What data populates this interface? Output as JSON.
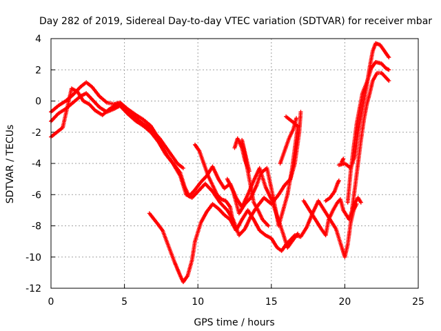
{
  "chart_data": {
    "type": "scatter",
    "title": "Day 282 of 2019, Sidereal Day-to-day VTEC variation (SDTVAR) for receiver mbar",
    "xlabel": "GPS time / hours",
    "ylabel": "SDTVAR / TECUs",
    "xlim": [
      0,
      25
    ],
    "ylim": [
      -12,
      4
    ],
    "x_ticks": [
      0,
      5,
      10,
      15,
      20,
      25
    ],
    "y_ticks": [
      -12,
      -10,
      -8,
      -6,
      -4,
      -2,
      0,
      2,
      4
    ],
    "grid": true,
    "marker": "+",
    "color": "#ff0000",
    "series": [
      {
        "points": [
          [
            0.0,
            -0.7
          ],
          [
            0.5,
            -0.3
          ],
          [
            1.0,
            0.0
          ],
          [
            1.5,
            0.4
          ],
          [
            2.0,
            0.9
          ],
          [
            2.4,
            1.2
          ],
          [
            2.8,
            0.9
          ],
          [
            3.3,
            0.3
          ],
          [
            3.8,
            -0.1
          ],
          [
            4.3,
            -0.2
          ],
          [
            4.7,
            -0.1
          ],
          [
            5.2,
            -0.5
          ],
          [
            5.8,
            -0.9
          ],
          [
            6.3,
            -1.2
          ],
          [
            6.8,
            -1.6
          ],
          [
            7.2,
            -2.2
          ],
          [
            7.6,
            -3.0
          ],
          [
            8.0,
            -3.6
          ],
          [
            8.4,
            -4.1
          ],
          [
            8.8,
            -4.6
          ],
          [
            9.1,
            -5.5
          ],
          [
            9.4,
            -6.1
          ],
          [
            9.8,
            -5.7
          ],
          [
            10.2,
            -5.2
          ],
          [
            10.6,
            -4.8
          ],
          [
            11.0,
            -4.2
          ],
          [
            11.4,
            -5.0
          ],
          [
            11.8,
            -5.6
          ],
          [
            12.2,
            -5.3
          ],
          [
            12.6,
            -6.2
          ],
          [
            13.0,
            -6.8
          ],
          [
            13.4,
            -6.0
          ],
          [
            13.8,
            -5.1
          ],
          [
            14.2,
            -4.3
          ],
          [
            14.6,
            -5.5
          ],
          [
            15.0,
            -6.3
          ],
          [
            15.4,
            -7.4
          ],
          [
            15.8,
            -8.5
          ],
          [
            16.1,
            -9.4
          ],
          [
            16.4,
            -9.0
          ],
          [
            16.8,
            -8.5
          ]
        ]
      },
      {
        "points": [
          [
            0.0,
            -1.3
          ],
          [
            0.5,
            -0.8
          ],
          [
            1.0,
            -0.5
          ],
          [
            1.5,
            -0.1
          ],
          [
            2.0,
            0.3
          ],
          [
            2.4,
            0.5
          ],
          [
            2.8,
            0.1
          ],
          [
            3.3,
            -0.4
          ],
          [
            3.8,
            -0.7
          ],
          [
            4.3,
            -0.5
          ],
          [
            4.7,
            -0.3
          ],
          [
            5.2,
            -0.8
          ],
          [
            5.8,
            -1.3
          ],
          [
            6.3,
            -1.6
          ],
          [
            6.8,
            -2.0
          ],
          [
            7.3,
            -2.6
          ],
          [
            7.8,
            -3.4
          ],
          [
            8.3,
            -4.0
          ],
          [
            8.8,
            -4.8
          ],
          [
            9.2,
            -6.0
          ],
          [
            9.6,
            -6.2
          ],
          [
            10.0,
            -5.8
          ],
          [
            10.5,
            -5.3
          ],
          [
            11.0,
            -5.8
          ],
          [
            11.5,
            -6.5
          ],
          [
            12.0,
            -7.0
          ],
          [
            12.4,
            -7.6
          ],
          [
            12.8,
            -8.6
          ],
          [
            13.2,
            -8.2
          ],
          [
            13.6,
            -7.4
          ],
          [
            14.0,
            -6.8
          ],
          [
            14.5,
            -6.2
          ],
          [
            15.0,
            -6.6
          ],
          [
            15.5,
            -6.0
          ],
          [
            15.9,
            -5.4
          ],
          [
            16.3,
            -5.0
          ],
          [
            16.6,
            -4.0
          ],
          [
            16.9,
            -2.0
          ],
          [
            17.0,
            -0.7
          ]
        ]
      },
      {
        "points": [
          [
            0.0,
            -2.3
          ],
          [
            0.4,
            -2.0
          ],
          [
            0.8,
            -1.7
          ],
          [
            1.4,
            0.8
          ],
          [
            1.8,
            0.6
          ],
          [
            2.2,
            0.0
          ],
          [
            2.6,
            -0.2
          ],
          [
            3.0,
            -0.6
          ],
          [
            3.5,
            -0.9
          ],
          [
            4.0,
            -0.5
          ],
          [
            4.5,
            -0.2
          ],
          [
            5.0,
            -0.4
          ],
          [
            5.6,
            -1.0
          ],
          [
            6.2,
            -1.4
          ],
          [
            6.8,
            -1.8
          ],
          [
            7.4,
            -2.4
          ],
          [
            8.0,
            -3.2
          ],
          [
            8.6,
            -4.0
          ],
          [
            9.0,
            -4.3
          ]
        ]
      },
      {
        "points": [
          [
            6.7,
            -7.2
          ],
          [
            7.2,
            -7.8
          ],
          [
            7.6,
            -8.3
          ],
          [
            8.0,
            -9.3
          ],
          [
            8.4,
            -10.3
          ],
          [
            8.8,
            -11.2
          ],
          [
            9.0,
            -11.6
          ],
          [
            9.3,
            -11.2
          ],
          [
            9.6,
            -10.2
          ],
          [
            9.8,
            -9.0
          ],
          [
            10.2,
            -7.8
          ],
          [
            10.6,
            -7.1
          ],
          [
            11.0,
            -6.6
          ],
          [
            11.4,
            -6.9
          ],
          [
            11.8,
            -7.3
          ],
          [
            12.2,
            -7.6
          ],
          [
            12.6,
            -8.3
          ],
          [
            13.0,
            -7.6
          ],
          [
            13.4,
            -7.0
          ],
          [
            13.8,
            -7.6
          ],
          [
            14.2,
            -8.3
          ],
          [
            14.6,
            -8.6
          ],
          [
            15.0,
            -8.8
          ],
          [
            15.4,
            -9.4
          ],
          [
            15.7,
            -9.6
          ],
          [
            16.0,
            -9.2
          ],
          [
            16.3,
            -8.9
          ],
          [
            16.6,
            -8.6
          ],
          [
            17.0,
            -8.7
          ],
          [
            17.4,
            -8.1
          ],
          [
            17.8,
            -7.2
          ],
          [
            18.2,
            -6.4
          ],
          [
            18.6,
            -7.0
          ],
          [
            19.0,
            -7.6
          ],
          [
            19.4,
            -8.2
          ],
          [
            19.8,
            -9.4
          ],
          [
            20.0,
            -10.0
          ],
          [
            20.2,
            -9.2
          ],
          [
            20.4,
            -7.8
          ],
          [
            20.6,
            -7.0
          ],
          [
            20.8,
            -6.6
          ]
        ]
      },
      {
        "points": [
          [
            12.0,
            -5.0
          ],
          [
            12.4,
            -5.8
          ],
          [
            12.8,
            -7.2
          ],
          [
            13.2,
            -6.6
          ],
          [
            13.6,
            -6.2
          ],
          [
            14.0,
            -5.4
          ],
          [
            14.3,
            -4.6
          ],
          [
            14.7,
            -4.3
          ],
          [
            15.0,
            -5.6
          ],
          [
            15.3,
            -7.0
          ],
          [
            15.5,
            -8.0
          ],
          [
            15.8,
            -7.0
          ],
          [
            16.1,
            -6.0
          ],
          [
            16.4,
            -4.4
          ],
          [
            16.6,
            -3.0
          ],
          [
            16.8,
            -1.6
          ],
          [
            16.0,
            -1.0
          ]
        ]
      },
      {
        "points": [
          [
            17.2,
            -6.4
          ],
          [
            17.6,
            -7.0
          ],
          [
            18.0,
            -7.6
          ],
          [
            18.4,
            -8.2
          ],
          [
            18.7,
            -8.6
          ],
          [
            18.9,
            -7.6
          ],
          [
            19.2,
            -7.0
          ],
          [
            19.5,
            -6.5
          ],
          [
            19.7,
            -6.3
          ],
          [
            19.9,
            -7.0
          ],
          [
            20.1,
            -7.3
          ],
          [
            20.3,
            -7.6
          ],
          [
            20.5,
            -7.0
          ],
          [
            20.7,
            -6.5
          ],
          [
            20.9,
            -6.2
          ],
          [
            21.1,
            -6.5
          ]
        ]
      },
      {
        "points": [
          [
            19.6,
            -4.1
          ],
          [
            20.0,
            -4.0
          ],
          [
            20.4,
            -4.3
          ],
          [
            20.7,
            -3.5
          ],
          [
            20.9,
            -2.0
          ],
          [
            21.1,
            -1.0
          ],
          [
            21.3,
            0.0
          ],
          [
            21.5,
            1.0
          ],
          [
            21.7,
            2.2
          ],
          [
            21.9,
            3.2
          ],
          [
            22.1,
            3.7
          ],
          [
            22.4,
            3.6
          ],
          [
            22.7,
            3.2
          ],
          [
            23.0,
            2.8
          ]
        ]
      },
      {
        "points": [
          [
            20.2,
            -6.5
          ],
          [
            20.4,
            -4.5
          ],
          [
            20.6,
            -3.0
          ],
          [
            20.8,
            -1.5
          ],
          [
            21.0,
            -0.5
          ],
          [
            21.2,
            0.5
          ],
          [
            21.5,
            1.2
          ],
          [
            21.8,
            2.1
          ],
          [
            22.1,
            2.5
          ],
          [
            22.5,
            2.4
          ],
          [
            22.8,
            2.1
          ],
          [
            23.0,
            2.0
          ]
        ]
      },
      {
        "points": [
          [
            20.5,
            -6.9
          ],
          [
            20.7,
            -5.5
          ],
          [
            20.9,
            -4.0
          ],
          [
            21.1,
            -2.5
          ],
          [
            21.3,
            -1.2
          ],
          [
            21.5,
            -0.2
          ],
          [
            21.7,
            0.5
          ],
          [
            21.9,
            1.3
          ],
          [
            22.2,
            1.8
          ],
          [
            22.5,
            1.8
          ],
          [
            22.8,
            1.5
          ],
          [
            23.0,
            1.3
          ]
        ]
      },
      {
        "points": [
          [
            12.5,
            -3.0
          ],
          [
            12.7,
            -2.4
          ],
          [
            13.0,
            -3.0
          ],
          [
            13.2,
            -3.8
          ],
          [
            13.5,
            -4.5
          ],
          [
            13.0,
            -2.5
          ],
          [
            13.8,
            -6.5
          ],
          [
            14.1,
            -7.0
          ],
          [
            14.4,
            -7.6
          ],
          [
            14.8,
            -8.0
          ]
        ]
      },
      {
        "points": [
          [
            9.8,
            -2.8
          ],
          [
            10.1,
            -3.2
          ],
          [
            10.4,
            -4.0
          ],
          [
            10.7,
            -4.8
          ],
          [
            11.0,
            -5.4
          ],
          [
            11.3,
            -6.0
          ],
          [
            11.6,
            -6.3
          ],
          [
            11.9,
            -6.4
          ],
          [
            12.2,
            -6.8
          ],
          [
            12.4,
            -7.8
          ]
        ]
      },
      {
        "points": [
          [
            15.6,
            -4.0
          ],
          [
            15.9,
            -3.2
          ],
          [
            16.2,
            -2.4
          ],
          [
            16.5,
            -1.8
          ],
          [
            16.7,
            -1.1
          ]
        ]
      },
      {
        "points": [
          [
            18.7,
            -6.4
          ],
          [
            19.0,
            -6.2
          ],
          [
            19.3,
            -5.8
          ],
          [
            19.5,
            -5.3
          ],
          [
            19.6,
            -5.1
          ]
        ]
      },
      {
        "points": [
          [
            19.8,
            -3.9
          ],
          [
            19.9,
            -3.7
          ]
        ]
      }
    ]
  }
}
